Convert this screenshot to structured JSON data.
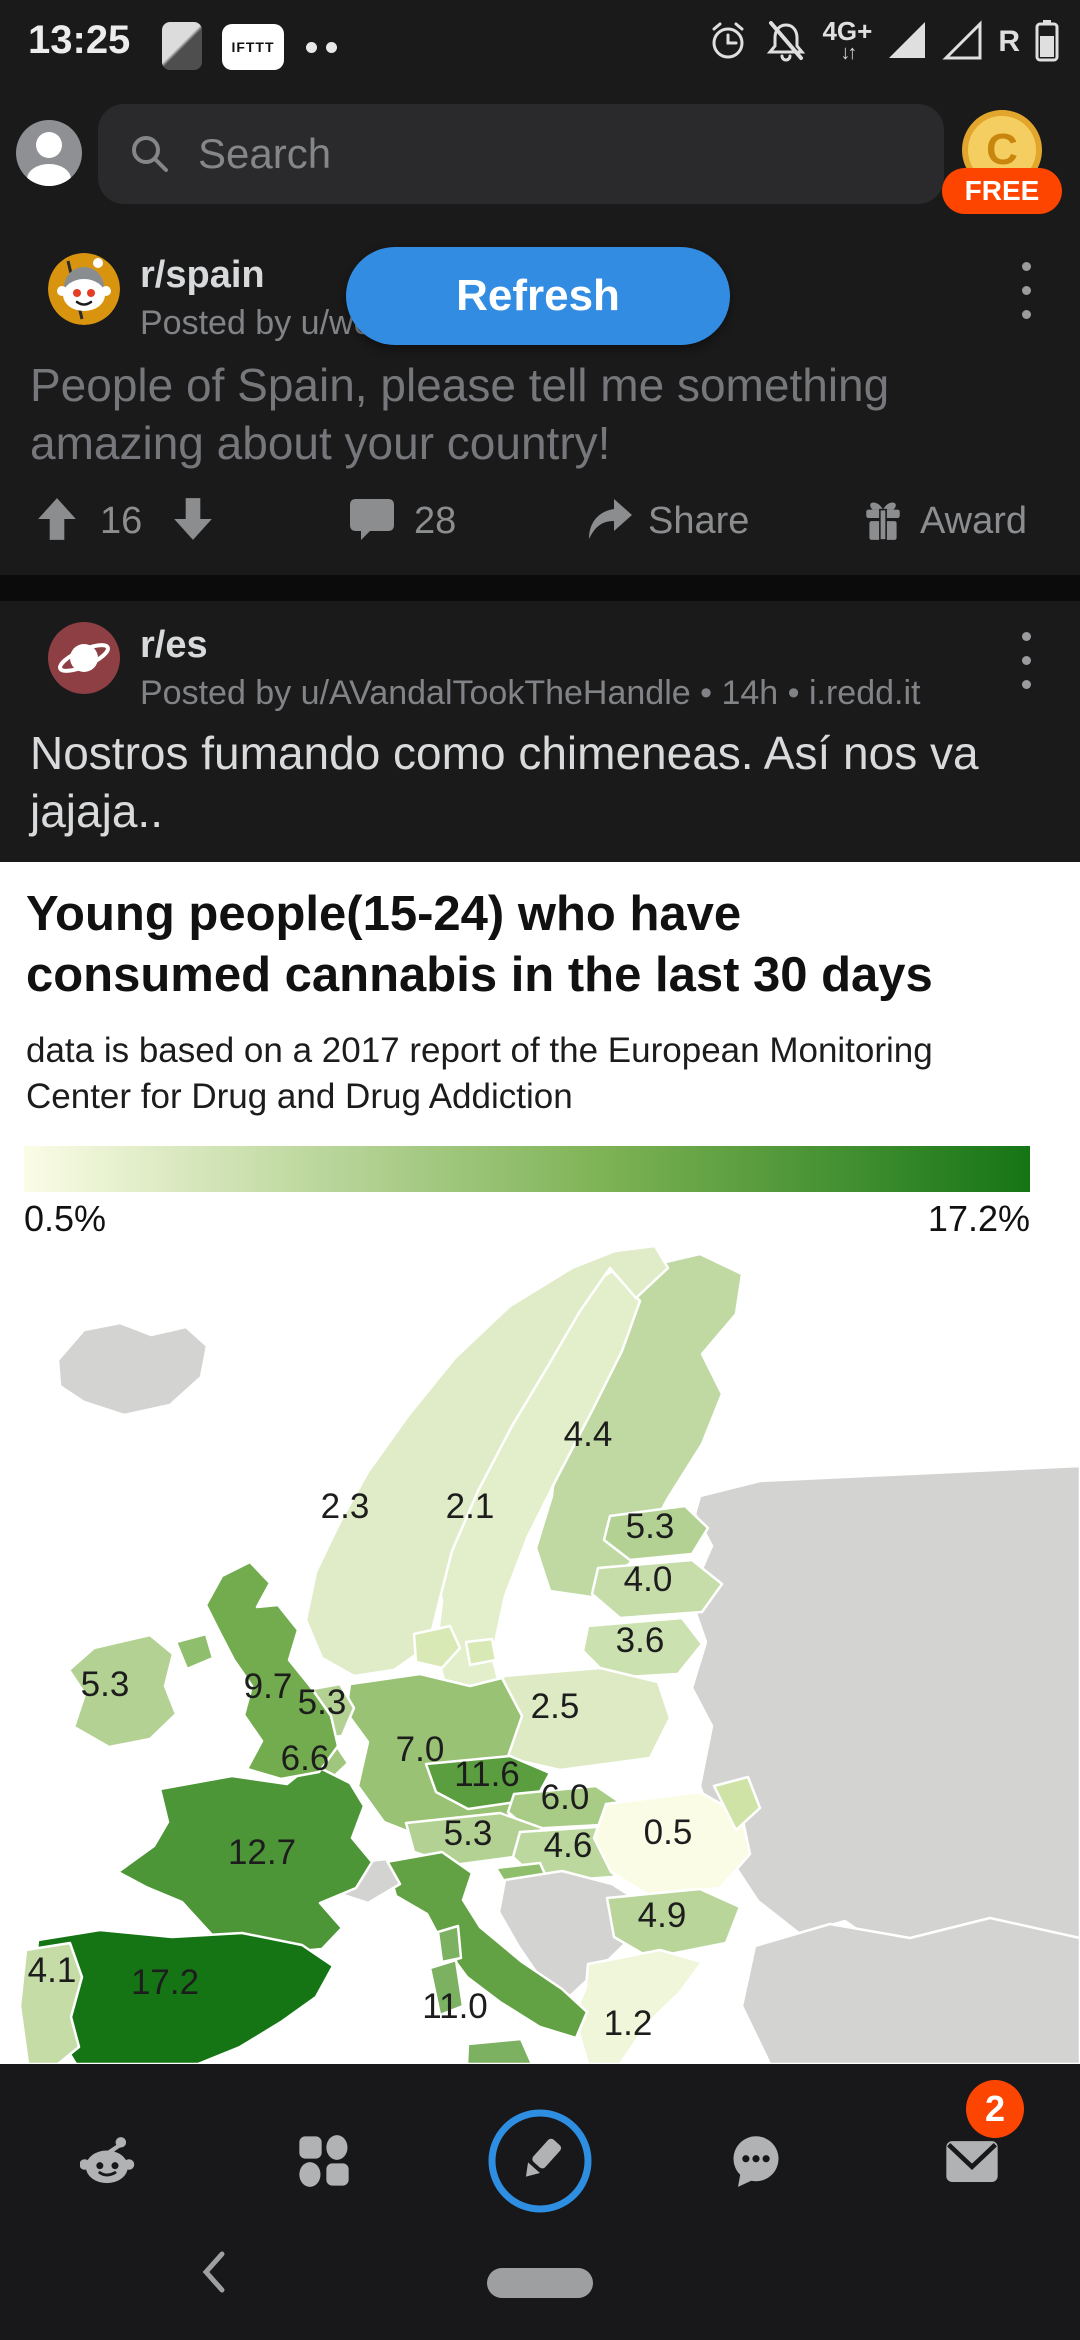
{
  "status_bar": {
    "time": "13:25",
    "ifttt_label": "IFTTT",
    "network_label": "4G+",
    "roaming_label": "R"
  },
  "search_bar": {
    "placeholder": "Search",
    "coin_letter": "C",
    "free_badge": "FREE"
  },
  "refresh_button_label": "Refresh",
  "post_spain": {
    "subreddit": "r/spain",
    "byline": "Posted by u/wo",
    "title": "People of Spain, please tell me something amazing about your country!",
    "upvote_count": "16",
    "comment_count": "28",
    "share_label": "Share",
    "award_label": "Award"
  },
  "post_es": {
    "subreddit": "r/es",
    "byline": "Posted by u/AVandalTookTheHandle • 14h • i.redd.it",
    "title": "Nostros fumando como chimeneas. Así nos va jajaja.."
  },
  "chart_data": {
    "type": "choropleth",
    "title": "Young people(15-24) who have\nconsumed cannabis in the last 30 days",
    "subtitle": "data is based on a 2017 report of the European Monitoring\nCenter for Drug and Drug Addiction",
    "unit": "%",
    "min": 0.5,
    "max": 17.2,
    "legend_min_label": "0.5%",
    "legend_max_label": "17.2%",
    "legend_position": "top",
    "colors": {
      "no_data": "#d3d4d1",
      "scale": [
        "#fbfce6",
        "#7db255",
        "#157515"
      ]
    },
    "countries": [
      {
        "name": "Iceland",
        "value": null
      },
      {
        "name": "Norway",
        "value": 2.3
      },
      {
        "name": "Sweden",
        "value": 2.1
      },
      {
        "name": "Finland",
        "value": 4.4
      },
      {
        "name": "Estonia",
        "value": 5.3
      },
      {
        "name": "Latvia",
        "value": 4.0
      },
      {
        "name": "Lithuania",
        "value": 3.6
      },
      {
        "name": "Ireland",
        "value": 5.3
      },
      {
        "name": "United Kingdom",
        "value": 9.7
      },
      {
        "name": "Netherlands",
        "value": 5.3
      },
      {
        "name": "Belgium",
        "value": 6.6
      },
      {
        "name": "Germany",
        "value": 7.0
      },
      {
        "name": "Poland",
        "value": 2.5
      },
      {
        "name": "Czech Republic",
        "value": 11.6
      },
      {
        "name": "Slovakia",
        "value": 6.0
      },
      {
        "name": "Austria",
        "value": 5.3
      },
      {
        "name": "Hungary",
        "value": 4.6
      },
      {
        "name": "Romania",
        "value": 0.5
      },
      {
        "name": "France",
        "value": 12.7
      },
      {
        "name": "Portugal",
        "value": 4.1
      },
      {
        "name": "Spain",
        "value": 17.2
      },
      {
        "name": "Italy",
        "value": 11.0
      },
      {
        "name": "Bulgaria",
        "value": 4.9
      },
      {
        "name": "Greece",
        "value": 1.2
      }
    ]
  },
  "bottom_nav": {
    "inbox_badge": "2"
  }
}
